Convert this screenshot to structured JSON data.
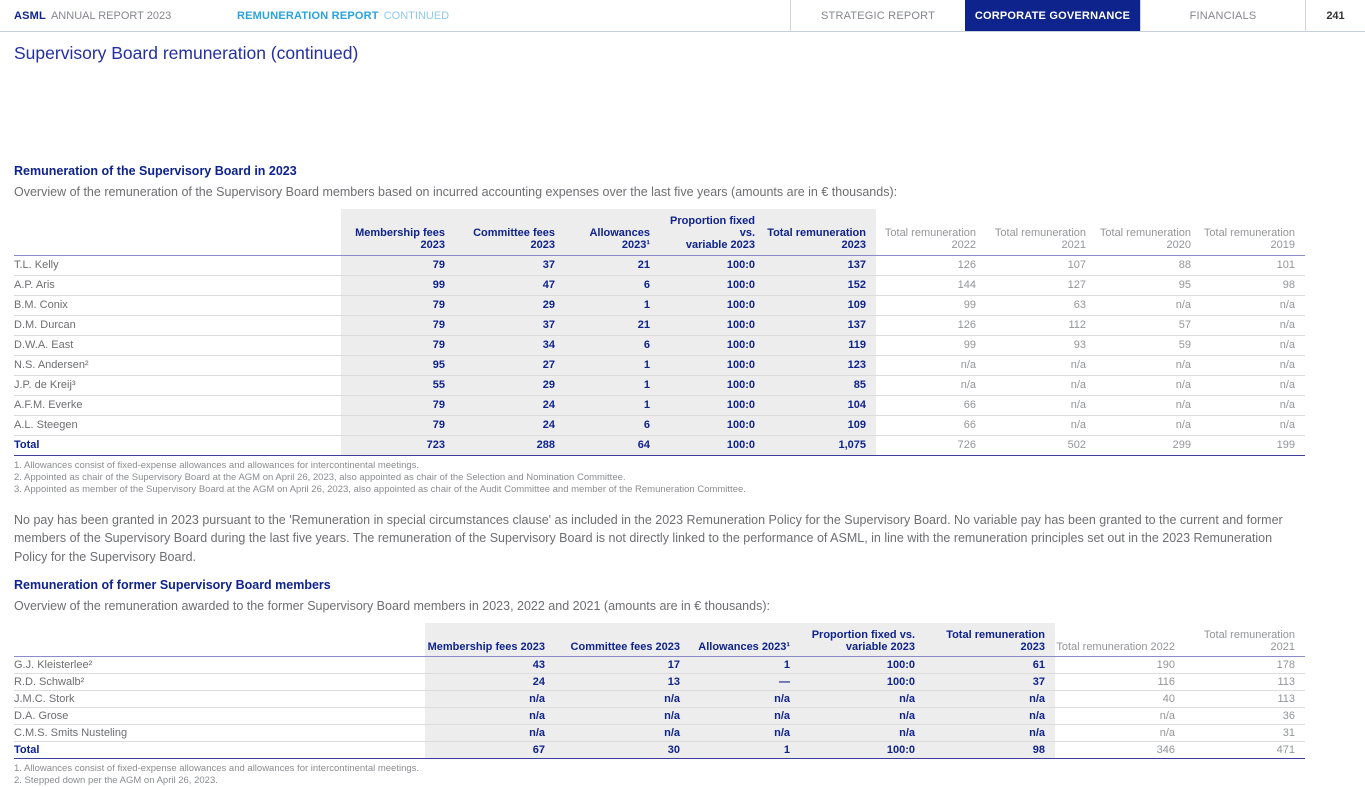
{
  "colors": {
    "navy": "#0f238c",
    "cyan": "#29a3dc",
    "cyan_light": "#8fc9e9",
    "text_gray": "#6d6e71",
    "muted_gray": "#939598",
    "highlight_bg": "#ededee",
    "rule_light": "#dcdcdd",
    "rule_blue": "#3d3d9b",
    "header_rule": "#8b8cc7",
    "bar_rule": "#c5d0da",
    "page_num": "#333333"
  },
  "header": {
    "brand": "ASML",
    "brand_suffix": "ANNUAL REPORT 2023",
    "section": "REMUNERATION REPORT",
    "section_suffix": "CONTINUED",
    "nav": [
      {
        "label": "STRATEGIC REPORT",
        "active": false
      },
      {
        "label": "CORPORATE GOVERNANCE",
        "active": true
      },
      {
        "label": "FINANCIALS",
        "active": false
      }
    ],
    "page_number": "241"
  },
  "page_title": "Supervisory Board remuneration (continued)",
  "section1": {
    "heading": "Remuneration of the Supervisory Board in 2023",
    "intro": "Overview of the remuneration of the Supervisory Board members based on incurred accounting expenses over the last five years (amounts are in € thousands):",
    "table": {
      "columns": [
        {
          "lines": [
            ""
          ]
        },
        {
          "lines": [
            "Membership fees",
            "2023"
          ]
        },
        {
          "lines": [
            "Committee fees",
            "2023"
          ]
        },
        {
          "lines": [
            "Allowances 2023¹"
          ]
        },
        {
          "lines": [
            "Proportion fixed vs.",
            "variable 2023"
          ]
        },
        {
          "lines": [
            "Total remuneration",
            "2023"
          ]
        },
        {
          "lines": [
            "Total remuneration",
            "2022"
          ]
        },
        {
          "lines": [
            "Total remuneration",
            "2021"
          ]
        },
        {
          "lines": [
            "Total remuneration",
            "2020"
          ]
        },
        {
          "lines": [
            "Total remuneration",
            "2019"
          ]
        }
      ],
      "rows": [
        [
          "T.L. Kelly",
          "79",
          "37",
          "21",
          "100:0",
          "137",
          "126",
          "107",
          "88",
          "101"
        ],
        [
          "A.P. Aris",
          "99",
          "47",
          "6",
          "100:0",
          "152",
          "144",
          "127",
          "95",
          "98"
        ],
        [
          "B.M. Conix",
          "79",
          "29",
          "1",
          "100:0",
          "109",
          "99",
          "63",
          "n/a",
          "n/a"
        ],
        [
          "D.M. Durcan",
          "79",
          "37",
          "21",
          "100:0",
          "137",
          "126",
          "112",
          "57",
          "n/a"
        ],
        [
          "D.W.A. East",
          "79",
          "34",
          "6",
          "100:0",
          "119",
          "99",
          "93",
          "59",
          "n/a"
        ],
        [
          "N.S. Andersen²",
          "95",
          "27",
          "1",
          "100:0",
          "123",
          "n/a",
          "n/a",
          "n/a",
          "n/a"
        ],
        [
          "J.P. de Kreij³",
          "55",
          "29",
          "1",
          "100:0",
          "85",
          "n/a",
          "n/a",
          "n/a",
          "n/a"
        ],
        [
          "A.F.M. Everke",
          "79",
          "24",
          "1",
          "100:0",
          "104",
          "66",
          "n/a",
          "n/a",
          "n/a"
        ],
        [
          "A.L. Steegen",
          "79",
          "24",
          "6",
          "100:0",
          "109",
          "66",
          "n/a",
          "n/a",
          "n/a"
        ]
      ],
      "total_row": [
        "Total",
        "723",
        "288",
        "64",
        "100:0",
        "1,075",
        "726",
        "502",
        "299",
        "199"
      ]
    },
    "footnotes": [
      "1. Allowances consist of fixed-expense allowances and allowances for intercontinental meetings.",
      "2. Appointed as chair of the Supervisory Board at the AGM on April 26, 2023, also appointed as chair of the Selection and Nomination Committee.",
      "3. Appointed as member of the Supervisory Board at the AGM on April 26, 2023, also appointed as chair of the Audit Committee and member of the Remuneration Committee."
    ]
  },
  "paragraph": "No pay has been granted in 2023 pursuant to the 'Remuneration in special circumstances clause' as included in the 2023 Remuneration Policy for the Supervisory Board. No variable pay has been granted to the current and former members of the Supervisory Board during the last five years. The remuneration of the Supervisory Board is not directly linked to the performance of ASML, in line with the remuneration principles set out in the 2023 Remuneration Policy for the Supervisory Board.",
  "section2": {
    "heading": "Remuneration of former Supervisory Board members",
    "intro": "Overview of the remuneration awarded to the former Supervisory Board members in 2023, 2022 and 2021 (amounts are in € thousands):",
    "table": {
      "columns": [
        {
          "lines": [
            ""
          ]
        },
        {
          "lines": [
            "Membership fees 2023"
          ]
        },
        {
          "lines": [
            "Committee fees 2023"
          ]
        },
        {
          "lines": [
            "Allowances 2023¹"
          ]
        },
        {
          "lines": [
            "Proportion fixed vs.",
            "variable 2023"
          ]
        },
        {
          "lines": [
            "Total remuneration 2023"
          ]
        },
        {
          "lines": [
            "Total remuneration 2022"
          ]
        },
        {
          "lines": [
            "Total remuneration 2021"
          ]
        }
      ],
      "rows": [
        [
          "G.J. Kleisterlee²",
          "43",
          "17",
          "1",
          "100:0",
          "61",
          "190",
          "178"
        ],
        [
          "R.D. Schwalb²",
          "24",
          "13",
          "—",
          "100:0",
          "37",
          "116",
          "113"
        ],
        [
          "J.M.C. Stork",
          "n/a",
          "n/a",
          "n/a",
          "n/a",
          "n/a",
          "40",
          "113"
        ],
        [
          "D.A. Grose",
          "n/a",
          "n/a",
          "n/a",
          "n/a",
          "n/a",
          "n/a",
          "36"
        ],
        [
          "C.M.S. Smits Nusteling",
          "n/a",
          "n/a",
          "n/a",
          "n/a",
          "n/a",
          "n/a",
          "31"
        ]
      ],
      "total_row": [
        "Total",
        "67",
        "30",
        "1",
        "100:0",
        "98",
        "346",
        "471"
      ]
    },
    "footnotes": [
      "1. Allowances consist of fixed-expense allowances and allowances for intercontinental meetings.",
      "2. Stepped down per the AGM on April 26, 2023."
    ]
  }
}
